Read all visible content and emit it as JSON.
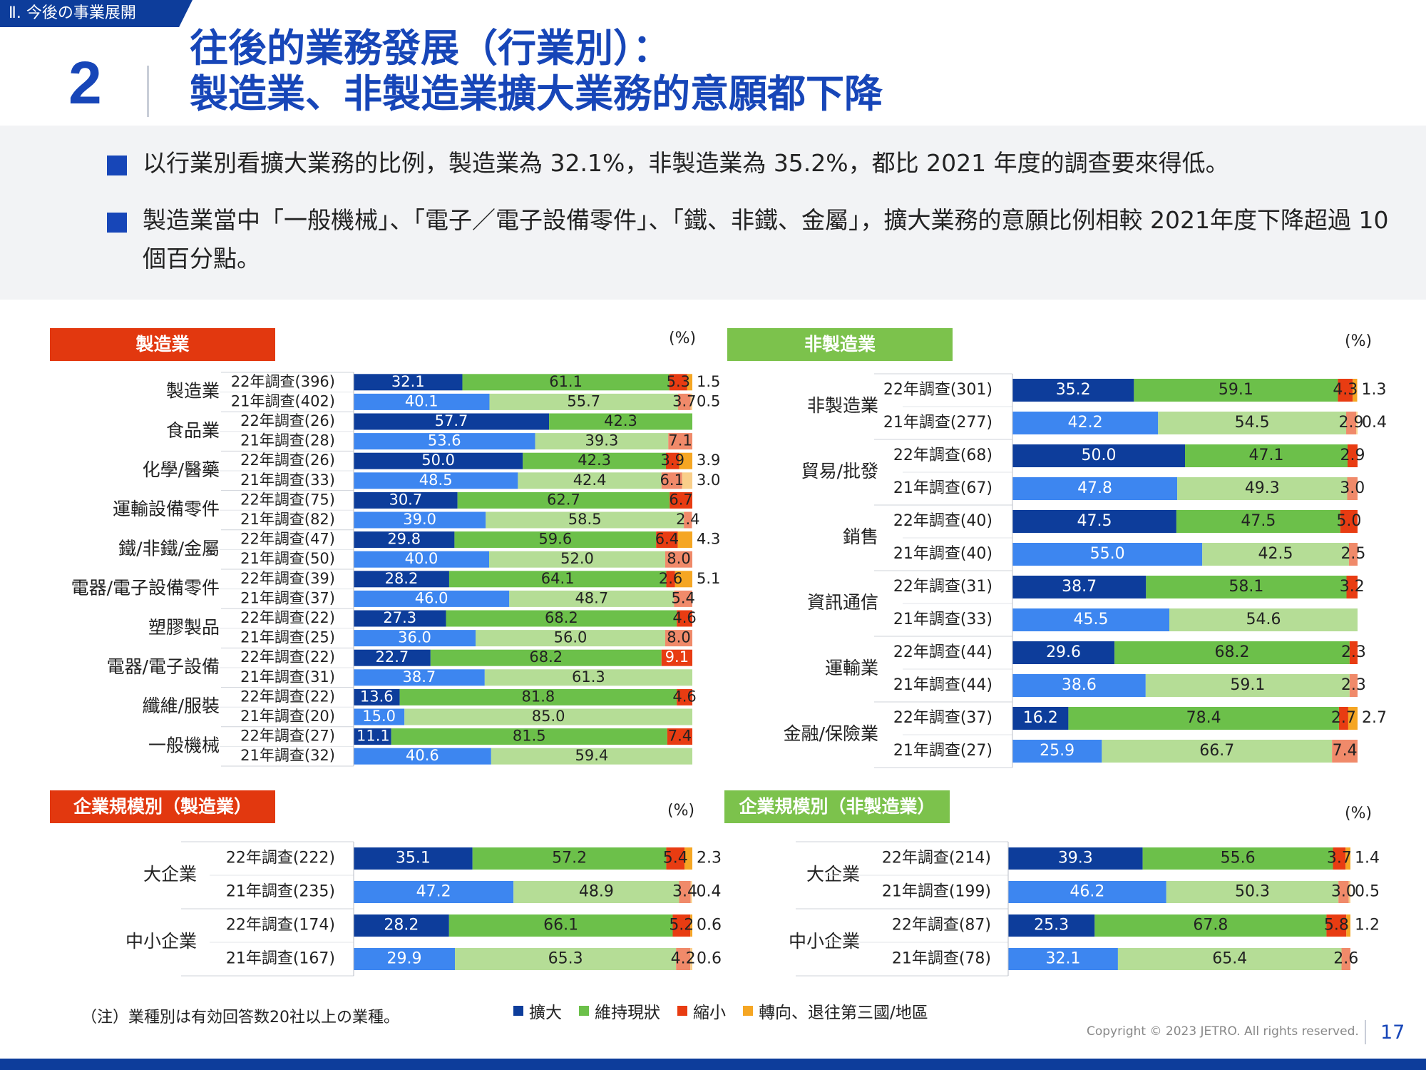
{
  "header": {
    "section_tag": "Ⅱ. 今後の事業展開",
    "number": "2",
    "title_line1": "往後的業務發展（行業別）：",
    "title_line2": "製造業、非製造業擴大業務的意願都下降"
  },
  "notes": [
    "以行業別看擴大業務的比例，製造業為 32.1%，非製造業為 35.2%，都比 2021 年度的調查要來得低。",
    "製造業當中「一般機械」、「電子／電子設備零件」、「鐵、非鐵、金屬」，擴大業務的意願比例相較 2021年度下降超過 10 個百分點。"
  ],
  "unit_label": "(%)",
  "colors": {
    "expand22": "#0d3d9b",
    "maintain22": "#6cc04a",
    "shrink22": "#e83c12",
    "move22": "#f5a623",
    "expand21": "#3d86f0",
    "maintain21": "#b5dd96",
    "shrink21": "#f08a6a",
    "move21": "#f9cf8a",
    "manu_title": "#e2380f",
    "nonmanu_title": "#7cc24c"
  },
  "legend": [
    {
      "label": "擴大",
      "color": "#0d3d9b"
    },
    {
      "label": "維持現狀",
      "color": "#6cc04a"
    },
    {
      "label": "縮小",
      "color": "#e83c12"
    },
    {
      "label": "轉向、退往第三國/地區",
      "color": "#f5a623"
    }
  ],
  "footnote": "（注）業種別は有効回答数20社以上の業種。",
  "copyright": "Copyright © 2023 JETRO. All rights reserved.",
  "page_number": "17",
  "chart_data": [
    {
      "id": "manu",
      "type": "bar",
      "stacked": true,
      "orientation": "horizontal",
      "title": "製造業",
      "series": [
        "擴大",
        "維持現狀",
        "縮小",
        "轉向、退往第三國/地區"
      ],
      "xlim": [
        0,
        100
      ],
      "groups": [
        {
          "name": "製造業",
          "rows": [
            {
              "label": "22年調查(396)",
              "year": "22",
              "values": [
                32.1,
                61.1,
                5.3,
                1.5
              ]
            },
            {
              "label": "21年調查(402)",
              "year": "21",
              "values": [
                40.1,
                55.7,
                3.7,
                0.5
              ]
            }
          ]
        },
        {
          "name": "食品業",
          "rows": [
            {
              "label": "22年調查(26)",
              "year": "22",
              "values": [
                57.7,
                42.3,
                0,
                0
              ]
            },
            {
              "label": "21年調查(28)",
              "year": "21",
              "values": [
                53.6,
                39.3,
                7.1,
                0
              ]
            }
          ]
        },
        {
          "name": "化學/醫藥",
          "rows": [
            {
              "label": "22年調查(26)",
              "year": "22",
              "values": [
                50.0,
                42.3,
                3.9,
                3.9
              ]
            },
            {
              "label": "21年調查(33)",
              "year": "21",
              "values": [
                48.5,
                42.4,
                6.1,
                3.0
              ]
            }
          ]
        },
        {
          "name": "運輸設備零件",
          "rows": [
            {
              "label": "22年調查(75)",
              "year": "22",
              "values": [
                30.7,
                62.7,
                6.7,
                0
              ]
            },
            {
              "label": "21年調查(82)",
              "year": "21",
              "values": [
                39.0,
                58.5,
                2.4,
                0
              ]
            }
          ]
        },
        {
          "name": "鐵/非鐵/金屬",
          "rows": [
            {
              "label": "22年調查(47)",
              "year": "22",
              "values": [
                29.8,
                59.6,
                6.4,
                4.3
              ]
            },
            {
              "label": "21年調查(50)",
              "year": "21",
              "values": [
                40.0,
                52.0,
                8.0,
                0
              ]
            }
          ]
        },
        {
          "name": "電器/電子設備零件",
          "rows": [
            {
              "label": "22年調查(39)",
              "year": "22",
              "values": [
                28.2,
                64.1,
                2.6,
                5.1
              ]
            },
            {
              "label": "21年調查(37)",
              "year": "21",
              "values": [
                46.0,
                48.7,
                5.4,
                0
              ]
            }
          ]
        },
        {
          "name": "塑膠製品",
          "rows": [
            {
              "label": "22年調查(22)",
              "year": "22",
              "values": [
                27.3,
                68.2,
                4.6,
                0
              ]
            },
            {
              "label": "21年調查(25)",
              "year": "21",
              "values": [
                36.0,
                56.0,
                8.0,
                0
              ]
            }
          ]
        },
        {
          "name": "電器/電子設備",
          "rows": [
            {
              "label": "22年調查(22)",
              "year": "22",
              "values": [
                22.7,
                68.2,
                9.1,
                0
              ]
            },
            {
              "label": "21年調查(31)",
              "year": "21",
              "values": [
                38.7,
                61.3,
                0,
                0
              ]
            }
          ]
        },
        {
          "name": "纖維/服裝",
          "rows": [
            {
              "label": "22年調查(22)",
              "year": "22",
              "values": [
                13.6,
                81.8,
                4.6,
                0
              ]
            },
            {
              "label": "21年調查(20)",
              "year": "21",
              "values": [
                15.0,
                85.0,
                0,
                0
              ]
            }
          ]
        },
        {
          "name": "一般機械",
          "rows": [
            {
              "label": "22年調查(27)",
              "year": "22",
              "values": [
                11.1,
                81.5,
                7.4,
                0
              ]
            },
            {
              "label": "21年調查(32)",
              "year": "21",
              "values": [
                40.6,
                59.4,
                0,
                0
              ]
            }
          ]
        }
      ]
    },
    {
      "id": "nonmanu",
      "type": "bar",
      "stacked": true,
      "orientation": "horizontal",
      "title": "非製造業",
      "series": [
        "擴大",
        "維持現狀",
        "縮小",
        "轉向、退往第三國/地區"
      ],
      "xlim": [
        0,
        100
      ],
      "groups": [
        {
          "name": "非製造業",
          "rows": [
            {
              "label": "22年調查(301)",
              "year": "22",
              "values": [
                35.2,
                59.1,
                4.3,
                1.3
              ]
            },
            {
              "label": "21年調查(277)",
              "year": "21",
              "values": [
                42.2,
                54.5,
                2.9,
                0.4
              ]
            }
          ]
        },
        {
          "name": "貿易/批發",
          "rows": [
            {
              "label": "22年調查(68)",
              "year": "22",
              "values": [
                50.0,
                47.1,
                2.9,
                0
              ]
            },
            {
              "label": "21年調查(67)",
              "year": "21",
              "values": [
                47.8,
                49.3,
                3.0,
                0
              ]
            }
          ]
        },
        {
          "name": "銷售",
          "rows": [
            {
              "label": "22年調查(40)",
              "year": "22",
              "values": [
                47.5,
                47.5,
                5.0,
                0
              ]
            },
            {
              "label": "21年調查(40)",
              "year": "21",
              "values": [
                55.0,
                42.5,
                2.5,
                0
              ]
            }
          ]
        },
        {
          "name": "資訊通信",
          "rows": [
            {
              "label": "22年調查(31)",
              "year": "22",
              "values": [
                38.7,
                58.1,
                3.2,
                0
              ]
            },
            {
              "label": "21年調查(33)",
              "year": "21",
              "values": [
                45.5,
                54.6,
                0,
                0
              ]
            }
          ]
        },
        {
          "name": "運輸業",
          "rows": [
            {
              "label": "22年調查(44)",
              "year": "22",
              "values": [
                29.6,
                68.2,
                2.3,
                0
              ]
            },
            {
              "label": "21年調查(44)",
              "year": "21",
              "values": [
                38.6,
                59.1,
                2.3,
                0
              ]
            }
          ]
        },
        {
          "name": "金融/保險業",
          "rows": [
            {
              "label": "22年調查(37)",
              "year": "22",
              "values": [
                16.2,
                78.4,
                2.7,
                2.7
              ]
            },
            {
              "label": "21年調查(27)",
              "year": "21",
              "values": [
                25.9,
                66.7,
                7.4,
                0
              ]
            }
          ]
        }
      ]
    },
    {
      "id": "size_manu",
      "type": "bar",
      "stacked": true,
      "orientation": "horizontal",
      "title": "企業規模別（製造業）",
      "series": [
        "擴大",
        "維持現狀",
        "縮小",
        "轉向、退往第三國/地區"
      ],
      "xlim": [
        0,
        100
      ],
      "groups": [
        {
          "name": "大企業",
          "rows": [
            {
              "label": "22年調查(222)",
              "year": "22",
              "values": [
                35.1,
                57.2,
                5.4,
                2.3
              ]
            },
            {
              "label": "21年調查(235)",
              "year": "21",
              "values": [
                47.2,
                48.9,
                3.4,
                0.4
              ]
            }
          ]
        },
        {
          "name": "中小企業",
          "rows": [
            {
              "label": "22年調查(174)",
              "year": "22",
              "values": [
                28.2,
                66.1,
                5.2,
                0.6
              ]
            },
            {
              "label": "21年調查(167)",
              "year": "21",
              "values": [
                29.9,
                65.3,
                4.2,
                0.6
              ]
            }
          ]
        }
      ]
    },
    {
      "id": "size_nonmanu",
      "type": "bar",
      "stacked": true,
      "orientation": "horizontal",
      "title": "企業規模別（非製造業）",
      "series": [
        "擴大",
        "維持現狀",
        "縮小",
        "轉向、退往第三國/地區"
      ],
      "xlim": [
        0,
        100
      ],
      "groups": [
        {
          "name": "大企業",
          "rows": [
            {
              "label": "22年調查(214)",
              "year": "22",
              "values": [
                39.3,
                55.6,
                3.7,
                1.4
              ]
            },
            {
              "label": "21年調查(199)",
              "year": "21",
              "values": [
                46.2,
                50.3,
                3.0,
                0.5
              ]
            }
          ]
        },
        {
          "name": "中小企業",
          "rows": [
            {
              "label": "22年調查(87)",
              "year": "22",
              "values": [
                25.3,
                67.8,
                5.8,
                1.2
              ]
            },
            {
              "label": "21年調查(78)",
              "year": "21",
              "values": [
                32.1,
                65.4,
                2.6,
                0
              ]
            }
          ]
        }
      ]
    }
  ]
}
